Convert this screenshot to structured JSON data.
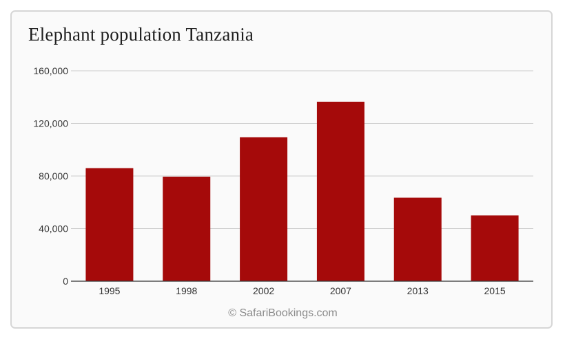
{
  "chart_data": {
    "type": "bar",
    "title": "Elephant population Tanzania",
    "categories": [
      "1995",
      "1998",
      "2002",
      "2007",
      "2013",
      "2015"
    ],
    "values": [
      86000,
      79500,
      109500,
      136500,
      63500,
      50000
    ],
    "ylim": [
      0,
      160000
    ],
    "yticks": [
      0,
      40000,
      80000,
      120000,
      160000
    ],
    "ytick_labels": [
      "0",
      "40,000",
      "80,000",
      "120,000",
      "160,000"
    ],
    "grid": true,
    "bar_color": "#a50a0a",
    "xlabel": "",
    "ylabel": ""
  },
  "credit": "© SafariBookings.com"
}
